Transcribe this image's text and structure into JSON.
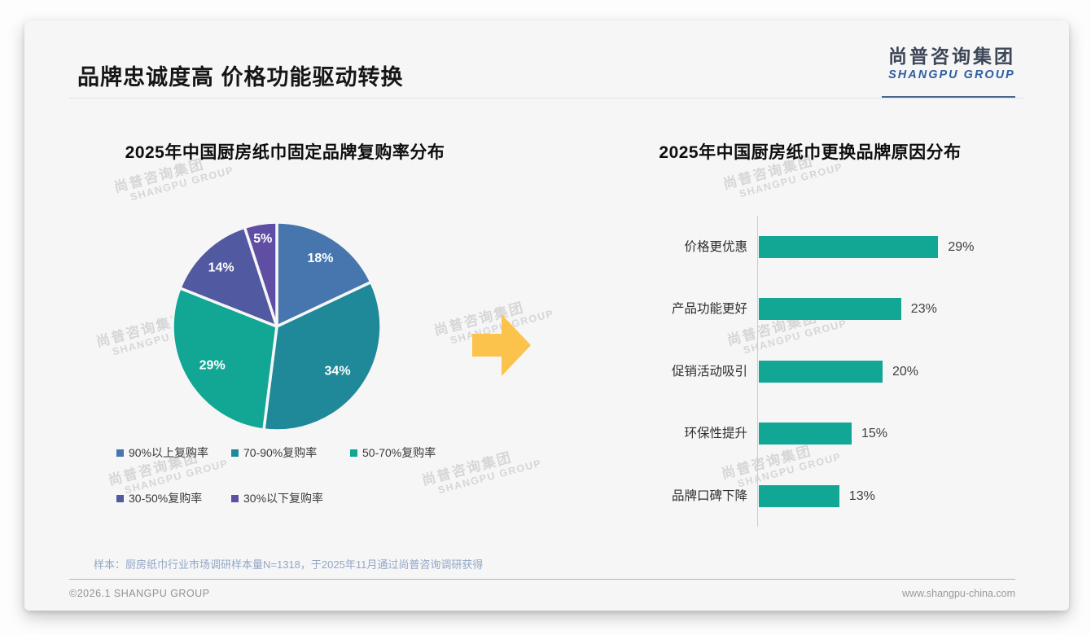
{
  "page": {
    "title": "品牌忠诚度高 价格功能驱动转换",
    "logo": {
      "cn": "尚普咨询集团",
      "en": "SHANGPU GROUP"
    },
    "watermark": {
      "cn": "尚普咨询集团",
      "en": "SHANGPU GROUP"
    },
    "footnote": "样本：厨房纸巾行业市场调研样本量N=1318，于2025年11月通过尚普咨询调研获得",
    "footer_left": "©2026.1 SHANGPU GROUP",
    "footer_right": "www.shangpu-china.com"
  },
  "colors": {
    "accent_teal": "#12A695",
    "arrow_yellow": "#FBC34C",
    "logo_blue": "#2F5E9E",
    "footnote_blue_gray": "#92A7C5"
  },
  "chart_data": [
    {
      "type": "pie",
      "title": "2025年中国厨房纸巾固定品牌复购率分布",
      "labels": [
        "90%以上复购率",
        "70-90%复购率",
        "50-70%复购率",
        "30-50%复购率",
        "30%以下复购率"
      ],
      "values": [
        18,
        34,
        29,
        14,
        5
      ],
      "value_labels": [
        "18%",
        "34%",
        "29%",
        "14%",
        "5%"
      ],
      "colors": [
        "#4676AD",
        "#1F8899",
        "#12A695",
        "#5159A0",
        "#5F4EA3"
      ],
      "start_angle_deg": 0,
      "direction": "clockwise",
      "legend_position": "bottom"
    },
    {
      "type": "bar",
      "title": "2025年中国厨房纸巾更换品牌原因分布",
      "orientation": "horizontal",
      "categories": [
        "价格更优惠",
        "产品功能更好",
        "促销活动吸引",
        "环保性提升",
        "品牌口碑下降"
      ],
      "values": [
        29,
        23,
        20,
        15,
        13
      ],
      "value_labels": [
        "29%",
        "23%",
        "20%",
        "15%",
        "13%"
      ],
      "bar_color": "#12A695",
      "xlim": [
        0,
        32
      ],
      "grid": false,
      "axis_line": true
    }
  ]
}
